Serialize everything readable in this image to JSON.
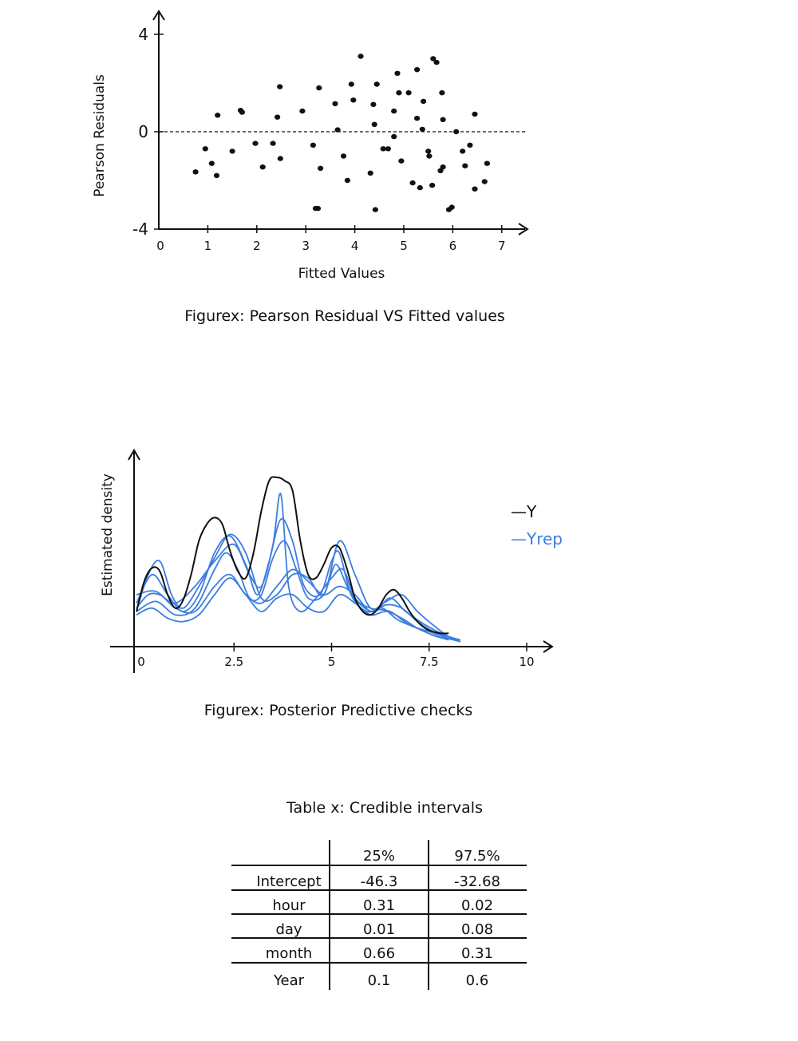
{
  "chart_data": [
    {
      "type": "scatter",
      "title": "Figurex: Pearson Residual VS Fitted values",
      "xlabel": "Fitted Values",
      "ylabel": "Pearson Residuals",
      "xlim": [
        0,
        7.5
      ],
      "ylim": [
        -4,
        4
      ],
      "x_ticks": [
        "0",
        "1",
        "2",
        "3",
        "4",
        "5",
        "6",
        "7"
      ],
      "y_ticks": [
        "-4",
        "0",
        "4"
      ],
      "reference_line": {
        "y": 0,
        "style": "dashed"
      },
      "points": [
        [
          0.75,
          -1.65
        ],
        [
          0.95,
          -0.7
        ],
        [
          1.08,
          -1.3
        ],
        [
          1.18,
          -1.8
        ],
        [
          1.2,
          0.68
        ],
        [
          1.5,
          -0.8
        ],
        [
          1.67,
          0.88
        ],
        [
          1.7,
          0.8
        ],
        [
          1.97,
          -0.48
        ],
        [
          2.12,
          -1.45
        ],
        [
          2.33,
          -0.48
        ],
        [
          2.42,
          0.6
        ],
        [
          2.48,
          -1.1
        ],
        [
          2.47,
          1.85
        ],
        [
          2.93,
          0.85
        ],
        [
          3.15,
          -0.55
        ],
        [
          3.2,
          -3.15
        ],
        [
          3.25,
          -3.15
        ],
        [
          3.27,
          1.8
        ],
        [
          3.3,
          -1.5
        ],
        [
          3.6,
          1.15
        ],
        [
          3.65,
          0.08
        ],
        [
          3.77,
          -1.0
        ],
        [
          3.85,
          -2.0
        ],
        [
          3.93,
          1.95
        ],
        [
          3.97,
          1.3
        ],
        [
          4.12,
          3.1
        ],
        [
          4.32,
          -1.7
        ],
        [
          4.38,
          1.12
        ],
        [
          4.4,
          0.3
        ],
        [
          4.45,
          1.95
        ],
        [
          4.42,
          -3.2
        ],
        [
          4.58,
          -0.7
        ],
        [
          4.68,
          -0.7
        ],
        [
          4.8,
          0.85
        ],
        [
          4.8,
          -0.2
        ],
        [
          4.9,
          1.6
        ],
        [
          4.87,
          2.4
        ],
        [
          4.95,
          -1.2
        ],
        [
          5.1,
          1.6
        ],
        [
          5.18,
          -2.1
        ],
        [
          5.27,
          0.55
        ],
        [
          5.27,
          2.55
        ],
        [
          5.33,
          -2.3
        ],
        [
          5.38,
          0.1
        ],
        [
          5.4,
          1.25
        ],
        [
          5.5,
          -0.8
        ],
        [
          5.52,
          -1.0
        ],
        [
          5.58,
          -2.2
        ],
        [
          5.6,
          3.0
        ],
        [
          5.67,
          2.85
        ],
        [
          5.75,
          -1.6
        ],
        [
          5.8,
          -1.45
        ],
        [
          5.78,
          1.6
        ],
        [
          5.8,
          0.5
        ],
        [
          5.92,
          -3.2
        ],
        [
          5.98,
          -3.1
        ],
        [
          6.07,
          0.0
        ],
        [
          6.2,
          -0.8
        ],
        [
          6.25,
          -1.4
        ],
        [
          6.35,
          -0.55
        ],
        [
          6.45,
          0.72
        ],
        [
          6.45,
          -2.35
        ],
        [
          6.65,
          -2.05
        ],
        [
          6.7,
          -1.3
        ]
      ]
    },
    {
      "type": "line",
      "title": "Figurex: Posterior Predictive checks",
      "xlabel": "",
      "ylabel": "Estimated density",
      "xlim": [
        0,
        10
      ],
      "ylim": [
        0,
        1
      ],
      "x_ticks": [
        "0",
        "2.5",
        "5",
        "7.5",
        "10"
      ],
      "legend": {
        "placement": "right",
        "entries": [
          "—Y",
          "—Yrep"
        ]
      },
      "colors": {
        "y": "#111111",
        "yrep": "#3b7de0"
      },
      "series": [
        {
          "name": "Y",
          "x": [
            0,
            0.2,
            0.4,
            0.6,
            0.8,
            1.0,
            1.2,
            1.4,
            1.6,
            1.8,
            2.0,
            2.2,
            2.4,
            2.6,
            2.8,
            3.0,
            3.2,
            3.4,
            3.6,
            3.8,
            4.0,
            4.2,
            4.4,
            4.6,
            4.8,
            5.0,
            5.2,
            5.4,
            5.6,
            5.8,
            6.0,
            6.2,
            6.4,
            6.6,
            6.8,
            7.0,
            7.2,
            7.4,
            7.6,
            7.8,
            8.0
          ],
          "values": [
            0.2,
            0.38,
            0.46,
            0.44,
            0.3,
            0.22,
            0.27,
            0.42,
            0.62,
            0.72,
            0.76,
            0.72,
            0.56,
            0.44,
            0.4,
            0.55,
            0.8,
            0.98,
            1.0,
            0.98,
            0.92,
            0.62,
            0.42,
            0.4,
            0.48,
            0.58,
            0.58,
            0.45,
            0.28,
            0.2,
            0.18,
            0.22,
            0.3,
            0.33,
            0.28,
            0.2,
            0.14,
            0.1,
            0.08,
            0.07,
            0.07
          ]
        },
        {
          "x": [
            0,
            0.3,
            0.6,
            1.0,
            1.5,
            2.0,
            2.5,
            2.9,
            3.2,
            3.5,
            3.7,
            3.9,
            4.2,
            4.6,
            5.0,
            5.3,
            5.6,
            6.0,
            6.5,
            7.0,
            7.5,
            8.0,
            8.3
          ],
          "values": [
            0.22,
            0.3,
            0.3,
            0.25,
            0.35,
            0.5,
            0.6,
            0.42,
            0.35,
            0.6,
            0.9,
            0.35,
            0.2,
            0.28,
            0.4,
            0.45,
            0.28,
            0.22,
            0.2,
            0.12,
            0.08,
            0.04,
            0.02
          ]
        },
        {
          "x": [
            0,
            0.4,
            0.8,
            1.2,
            1.6,
            2.0,
            2.4,
            2.8,
            3.1,
            3.4,
            3.7,
            4.0,
            4.3,
            4.7,
            5.0,
            5.2,
            5.5,
            5.9,
            6.3,
            6.7,
            7.2,
            7.7,
            8.2
          ],
          "values": [
            0.25,
            0.42,
            0.3,
            0.2,
            0.3,
            0.55,
            0.65,
            0.48,
            0.3,
            0.5,
            0.75,
            0.62,
            0.35,
            0.3,
            0.5,
            0.55,
            0.3,
            0.2,
            0.22,
            0.15,
            0.1,
            0.05,
            0.03
          ]
        },
        {
          "x": [
            0,
            0.5,
            1.0,
            1.5,
            2.0,
            2.3,
            2.6,
            2.9,
            3.2,
            3.5,
            3.8,
            4.1,
            4.4,
            4.8,
            5.1,
            5.4,
            5.7,
            6.1,
            6.5,
            6.9,
            7.4,
            7.9,
            8.3
          ],
          "values": [
            0.2,
            0.26,
            0.18,
            0.22,
            0.45,
            0.55,
            0.45,
            0.28,
            0.3,
            0.52,
            0.62,
            0.45,
            0.28,
            0.3,
            0.48,
            0.35,
            0.25,
            0.2,
            0.28,
            0.2,
            0.12,
            0.06,
            0.03
          ]
        },
        {
          "x": [
            0,
            0.5,
            1.0,
            1.5,
            2.0,
            2.4,
            2.8,
            3.2,
            3.6,
            4.0,
            4.4,
            4.8,
            5.2,
            5.6,
            6.0,
            6.4,
            6.8,
            7.2,
            7.6,
            8.0
          ],
          "values": [
            0.3,
            0.32,
            0.22,
            0.2,
            0.35,
            0.42,
            0.3,
            0.25,
            0.35,
            0.45,
            0.38,
            0.3,
            0.35,
            0.3,
            0.2,
            0.24,
            0.22,
            0.14,
            0.08,
            0.05
          ]
        },
        {
          "x": [
            0,
            0.4,
            0.8,
            1.2,
            1.6,
            2.0,
            2.4,
            2.8,
            3.2,
            3.6,
            4.0,
            4.4,
            4.8,
            5.2,
            5.6,
            6.0,
            6.4,
            6.8,
            7.2,
            7.6,
            8.0
          ],
          "values": [
            0.18,
            0.22,
            0.16,
            0.14,
            0.18,
            0.3,
            0.4,
            0.3,
            0.2,
            0.28,
            0.3,
            0.22,
            0.2,
            0.3,
            0.25,
            0.18,
            0.2,
            0.16,
            0.1,
            0.06,
            0.03
          ]
        },
        {
          "x": [
            0,
            0.3,
            0.6,
            0.9,
            1.2,
            1.6,
            2.0,
            2.4,
            2.8,
            3.2,
            3.6,
            4.0,
            4.4,
            4.8,
            5.2,
            5.6,
            6.0,
            6.4,
            6.8,
            7.2,
            7.6,
            8.0,
            8.3
          ],
          "values": [
            0.2,
            0.42,
            0.5,
            0.3,
            0.22,
            0.35,
            0.52,
            0.66,
            0.55,
            0.28,
            0.3,
            0.42,
            0.4,
            0.3,
            0.62,
            0.42,
            0.22,
            0.26,
            0.3,
            0.2,
            0.12,
            0.05,
            0.02
          ]
        }
      ]
    },
    {
      "type": "table",
      "title": "Table x: Credible intervals",
      "columns": [
        "",
        "25%",
        "97.5%"
      ],
      "rows": [
        [
          "Intercept",
          "-46.3",
          "-32.68"
        ],
        [
          "hour",
          "0.31",
          "0.02"
        ],
        [
          "day",
          "0.01",
          "0.08"
        ],
        [
          "month",
          "0.66",
          "0.31"
        ],
        [
          "Year",
          "0.1",
          "0.6"
        ]
      ]
    }
  ]
}
